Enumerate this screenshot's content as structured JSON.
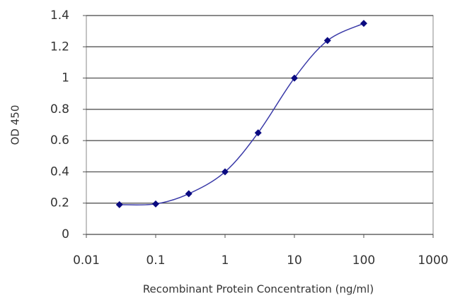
{
  "chart_data": {
    "type": "line",
    "x_label": "Recombinant Protein Concentration (ng/ml)",
    "y_label": "OD 450",
    "x": [
      0.03,
      0.1,
      0.3,
      1,
      3,
      10,
      30,
      100
    ],
    "series": [
      {
        "name": "OD 450",
        "color": "#3a3aa8",
        "marker_color": "#0a0a80",
        "values": [
          0.19,
          0.195,
          0.26,
          0.4,
          0.65,
          1.0,
          1.24,
          1.35
        ]
      }
    ],
    "xscale": "log",
    "xlim": [
      0.01,
      1000
    ],
    "xticks": [
      0.01,
      0.1,
      1,
      10,
      100,
      1000
    ],
    "ylim": [
      0,
      1.4
    ],
    "yticks": [
      0,
      0.2,
      0.4,
      0.6,
      0.8,
      1,
      1.2,
      1.4
    ],
    "grid": true
  }
}
